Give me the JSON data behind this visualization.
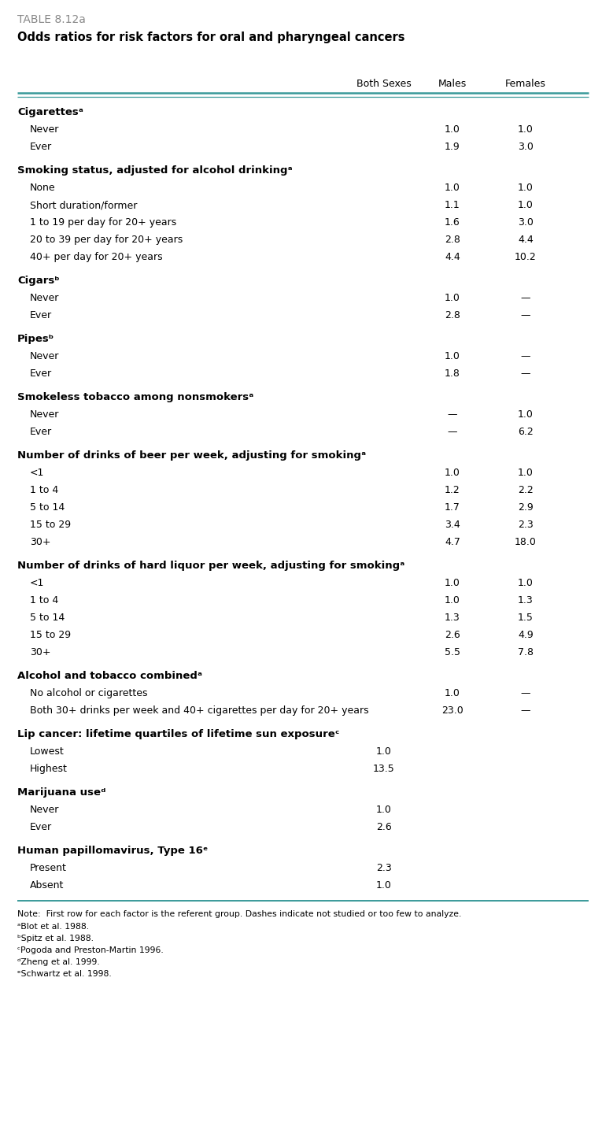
{
  "table_label": "TABLE 8.12a",
  "title": "Odds ratios for risk factors for oral and pharyngeal cancers",
  "note": "Note:  First row for each factor is the referent group. Dashes indicate not studied or too few to analyze.",
  "footnotes": [
    "aBlot et al. 1988.",
    "bSpitz et al. 1988.",
    "cPogoda and Preston-Martin 1996.",
    "dZheng et al. 1999.",
    "eSchwartz et al. 1998."
  ],
  "footnote_supers": [
    "a",
    "b",
    "c",
    "d",
    "e"
  ],
  "footnote_bases": [
    "Blot et al. 1988.",
    "Spitz et al. 1988.",
    "Pogoda and Preston-Martin 1996.",
    "Zheng et al. 1999.",
    "Schwartz et al. 1998."
  ],
  "rows": [
    {
      "text": "Cigarettes",
      "super": "a",
      "bold": true,
      "indent": false,
      "both": "",
      "males": "",
      "females": ""
    },
    {
      "text": "Never",
      "super": "",
      "bold": false,
      "indent": true,
      "both": "",
      "males": "1.0",
      "females": "1.0"
    },
    {
      "text": "Ever",
      "super": "",
      "bold": false,
      "indent": true,
      "both": "",
      "males": "1.9",
      "females": "3.0"
    },
    {
      "text": "Smoking status, adjusted for alcohol drinking",
      "super": "a",
      "bold": true,
      "indent": false,
      "both": "",
      "males": "",
      "females": ""
    },
    {
      "text": "None",
      "super": "",
      "bold": false,
      "indent": true,
      "both": "",
      "males": "1.0",
      "females": "1.0"
    },
    {
      "text": "Short duration/former",
      "super": "",
      "bold": false,
      "indent": true,
      "both": "",
      "males": "1.1",
      "females": "1.0"
    },
    {
      "text": "1 to 19 per day for 20+ years",
      "super": "",
      "bold": false,
      "indent": true,
      "both": "",
      "males": "1.6",
      "females": "3.0"
    },
    {
      "text": "20 to 39 per day for 20+ years",
      "super": "",
      "bold": false,
      "indent": true,
      "both": "",
      "males": "2.8",
      "females": "4.4"
    },
    {
      "text": "40+ per day for 20+ years",
      "super": "",
      "bold": false,
      "indent": true,
      "both": "",
      "males": "4.4",
      "females": "10.2"
    },
    {
      "text": "Cigars",
      "super": "b",
      "bold": true,
      "indent": false,
      "both": "",
      "males": "",
      "females": ""
    },
    {
      "text": "Never",
      "super": "",
      "bold": false,
      "indent": true,
      "both": "",
      "males": "1.0",
      "females": "—"
    },
    {
      "text": "Ever",
      "super": "",
      "bold": false,
      "indent": true,
      "both": "",
      "males": "2.8",
      "females": "—"
    },
    {
      "text": "Pipes",
      "super": "b",
      "bold": true,
      "indent": false,
      "both": "",
      "males": "",
      "females": ""
    },
    {
      "text": "Never",
      "super": "",
      "bold": false,
      "indent": true,
      "both": "",
      "males": "1.0",
      "females": "—"
    },
    {
      "text": "Ever",
      "super": "",
      "bold": false,
      "indent": true,
      "both": "",
      "males": "1.8",
      "females": "—"
    },
    {
      "text": "Smokeless tobacco among nonsmokers",
      "super": "a",
      "bold": true,
      "indent": false,
      "both": "",
      "males": "",
      "females": ""
    },
    {
      "text": "Never",
      "super": "",
      "bold": false,
      "indent": true,
      "both": "",
      "males": "—",
      "females": "1.0"
    },
    {
      "text": "Ever",
      "super": "",
      "bold": false,
      "indent": true,
      "both": "",
      "males": "—",
      "females": "6.2"
    },
    {
      "text": "Number of drinks of beer per week, adjusting for smoking",
      "super": "a",
      "bold": true,
      "indent": false,
      "both": "",
      "males": "",
      "females": ""
    },
    {
      "text": "<1",
      "super": "",
      "bold": false,
      "indent": true,
      "both": "",
      "males": "1.0",
      "females": "1.0"
    },
    {
      "text": "1 to 4",
      "super": "",
      "bold": false,
      "indent": true,
      "both": "",
      "males": "1.2",
      "females": "2.2"
    },
    {
      "text": "5 to 14",
      "super": "",
      "bold": false,
      "indent": true,
      "both": "",
      "males": "1.7",
      "females": "2.9"
    },
    {
      "text": "15 to 29",
      "super": "",
      "bold": false,
      "indent": true,
      "both": "",
      "males": "3.4",
      "females": "2.3"
    },
    {
      "text": "30+",
      "super": "",
      "bold": false,
      "indent": true,
      "both": "",
      "males": "4.7",
      "females": "18.0"
    },
    {
      "text": "Number of drinks of hard liquor per week, adjusting for smoking",
      "super": "a",
      "bold": true,
      "indent": false,
      "both": "",
      "males": "",
      "females": ""
    },
    {
      "text": "<1",
      "super": "",
      "bold": false,
      "indent": true,
      "both": "",
      "males": "1.0",
      "females": "1.0"
    },
    {
      "text": "1 to 4",
      "super": "",
      "bold": false,
      "indent": true,
      "both": "",
      "males": "1.0",
      "females": "1.3"
    },
    {
      "text": "5 to 14",
      "super": "",
      "bold": false,
      "indent": true,
      "both": "",
      "males": "1.3",
      "females": "1.5"
    },
    {
      "text": "15 to 29",
      "super": "",
      "bold": false,
      "indent": true,
      "both": "",
      "males": "2.6",
      "females": "4.9"
    },
    {
      "text": "30+",
      "super": "",
      "bold": false,
      "indent": true,
      "both": "",
      "males": "5.5",
      "females": "7.8"
    },
    {
      "text": "Alcohol and tobacco combined",
      "super": "a",
      "bold": true,
      "indent": false,
      "both": "",
      "males": "",
      "females": ""
    },
    {
      "text": "No alcohol or cigarettes",
      "super": "",
      "bold": false,
      "indent": true,
      "both": "",
      "males": "1.0",
      "females": "—"
    },
    {
      "text": "Both 30+ drinks per week and 40+ cigarettes per day for 20+ years",
      "super": "",
      "bold": false,
      "indent": true,
      "both": "",
      "males": "23.0",
      "females": "—"
    },
    {
      "text": "Lip cancer: lifetime quartiles of lifetime sun exposure",
      "super": "c",
      "bold": true,
      "indent": false,
      "both": "",
      "males": "",
      "females": ""
    },
    {
      "text": "Lowest",
      "super": "",
      "bold": false,
      "indent": true,
      "both": "1.0",
      "males": "",
      "females": ""
    },
    {
      "text": "Highest",
      "super": "",
      "bold": false,
      "indent": true,
      "both": "13.5",
      "males": "",
      "females": ""
    },
    {
      "text": "Marijuana use",
      "super": "d",
      "bold": true,
      "indent": false,
      "both": "",
      "males": "",
      "females": ""
    },
    {
      "text": "Never",
      "super": "",
      "bold": false,
      "indent": true,
      "both": "1.0",
      "males": "",
      "females": ""
    },
    {
      "text": "Ever",
      "super": "",
      "bold": false,
      "indent": true,
      "both": "2.6",
      "males": "",
      "females": ""
    },
    {
      "text": "Human papillomavirus, Type 16",
      "super": "e",
      "bold": true,
      "indent": false,
      "both": "",
      "males": "",
      "females": ""
    },
    {
      "text": "Present",
      "super": "",
      "bold": false,
      "indent": true,
      "both": "2.3",
      "males": "",
      "females": ""
    },
    {
      "text": "Absent",
      "super": "",
      "bold": false,
      "indent": true,
      "both": "1.0",
      "males": "",
      "females": ""
    }
  ],
  "bg_color": "#f5f5f0",
  "line_color": "#3a9a9a",
  "label_color": "#888888"
}
